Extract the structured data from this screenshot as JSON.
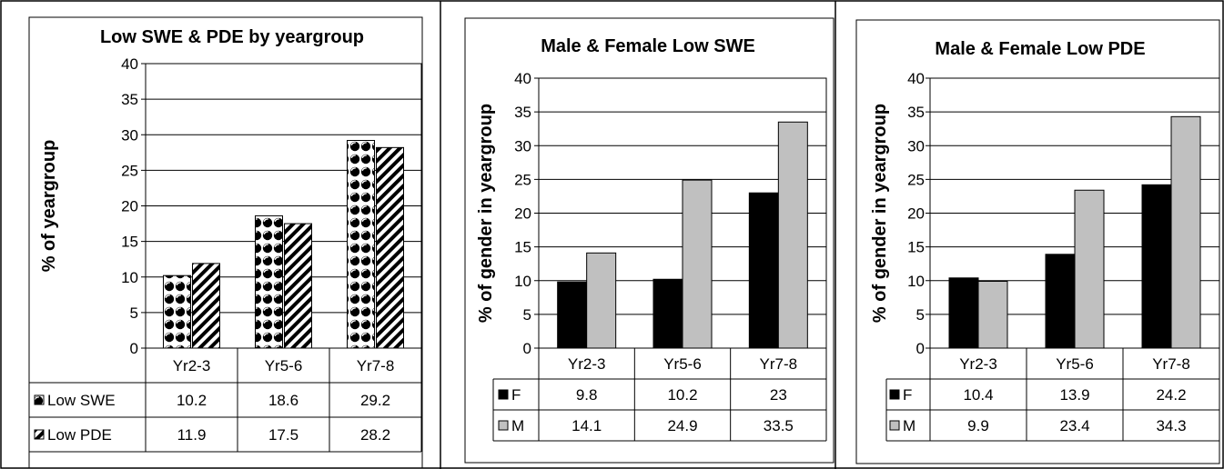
{
  "chart_data": [
    {
      "type": "bar",
      "title": "Low SWE & PDE by yeargroup",
      "xlabel": "",
      "ylabel": "% of yeargroup",
      "ylim": [
        0,
        40
      ],
      "yticks": [
        0,
        5,
        10,
        15,
        20,
        25,
        30,
        35,
        40
      ],
      "categories": [
        "Yr2-3",
        "Yr5-6",
        "Yr7-8"
      ],
      "series": [
        {
          "name": "Low SWE",
          "values": [
            10.2,
            18.6,
            29.2
          ],
          "pattern": "circles",
          "display": [
            "10.2",
            "18.6",
            "29.2"
          ]
        },
        {
          "name": "Low PDE",
          "values": [
            11.9,
            17.5,
            28.2
          ],
          "pattern": "diagonal-stripes",
          "display": [
            "11.9",
            "17.5",
            "28.2"
          ]
        }
      ],
      "legend": "data-table",
      "grid": true
    },
    {
      "type": "bar",
      "title": "Male & Female Low SWE",
      "xlabel": "",
      "ylabel": "% of gender in yeargroup",
      "ylim": [
        0,
        40
      ],
      "yticks": [
        0,
        5,
        10,
        15,
        20,
        25,
        30,
        35,
        40
      ],
      "categories": [
        "Yr2-3",
        "Yr5-6",
        "Yr7-8"
      ],
      "series": [
        {
          "name": "F",
          "values": [
            9.8,
            10.2,
            23
          ],
          "color": "#000000",
          "display": [
            "9.8",
            "10.2",
            "23"
          ]
        },
        {
          "name": "M",
          "values": [
            14.1,
            24.9,
            33.5
          ],
          "color": "#c0c0c0",
          "display": [
            "14.1",
            "24.9",
            "33.5"
          ]
        }
      ],
      "legend": "data-table",
      "grid": true
    },
    {
      "type": "bar",
      "title": "Male & Female Low PDE",
      "xlabel": "",
      "ylabel": "% of gender in yeargroup",
      "ylim": [
        0,
        40
      ],
      "yticks": [
        0,
        5,
        10,
        15,
        20,
        25,
        30,
        35,
        40
      ],
      "categories": [
        "Yr2-3",
        "Yr5-6",
        "Yr7-8"
      ],
      "series": [
        {
          "name": "F",
          "values": [
            10.4,
            13.9,
            24.2
          ],
          "color": "#000000",
          "display": [
            "10.4",
            "13.9",
            "24.2"
          ]
        },
        {
          "name": "M",
          "values": [
            9.9,
            23.4,
            34.3
          ],
          "color": "#c0c0c0",
          "display": [
            "9.9",
            "23.4",
            "34.3"
          ]
        }
      ],
      "legend": "data-table",
      "grid": true
    }
  ]
}
